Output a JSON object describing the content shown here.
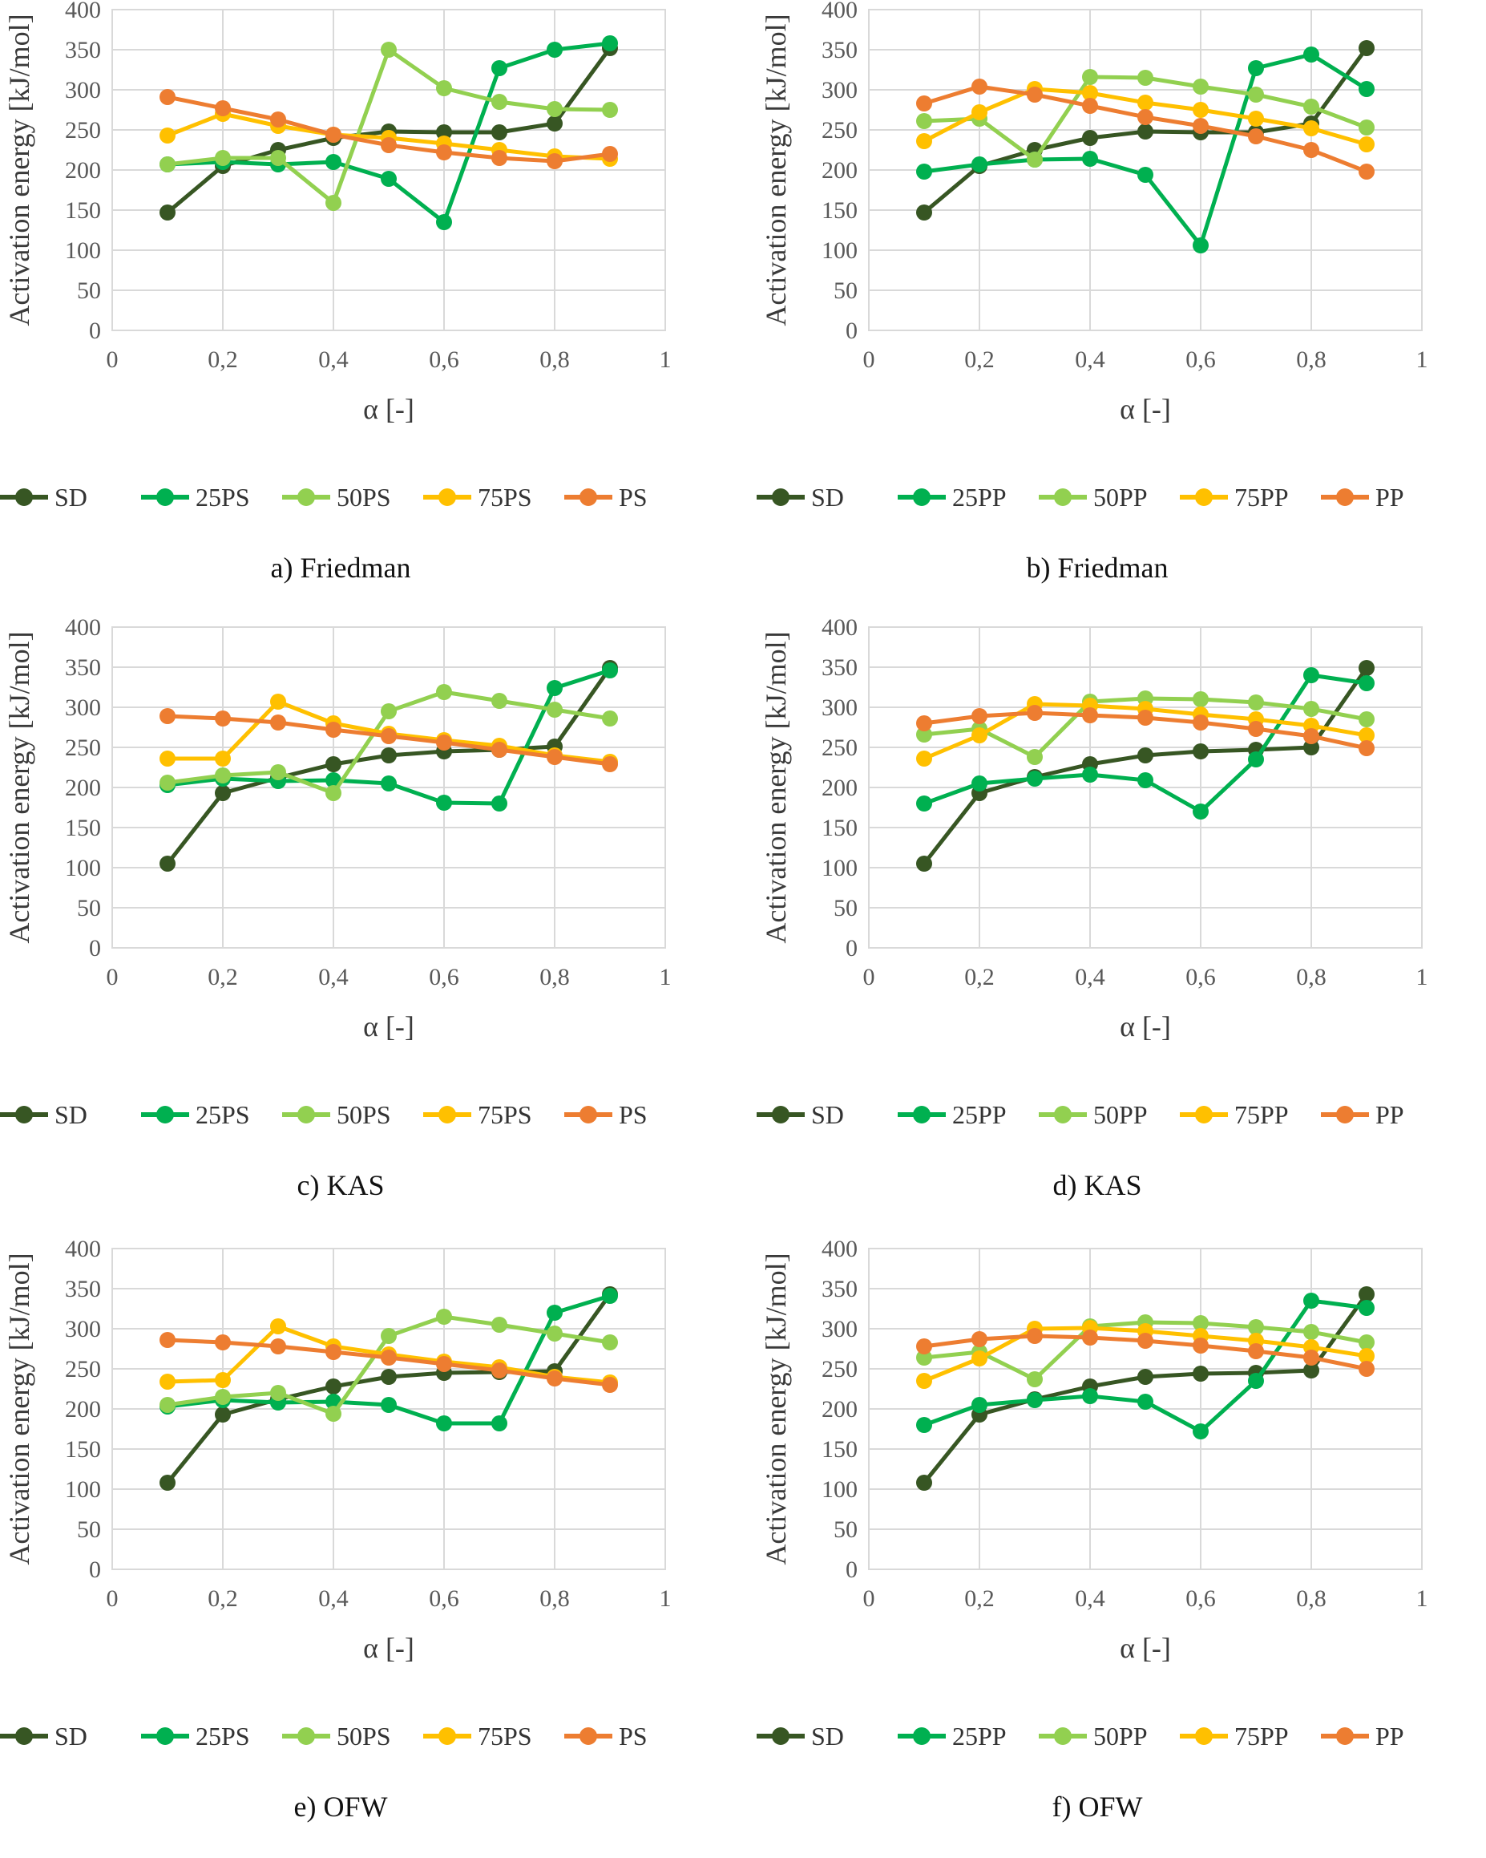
{
  "chart_data": [
    {
      "type": "line",
      "caption": "a) Friedman",
      "xlabel": "α [-]",
      "ylabel": "Activation energy [kJ/mol]",
      "xlim": [
        0,
        1
      ],
      "ylim": [
        0,
        400
      ],
      "xticks": [
        "0",
        "0,2",
        "0,4",
        "0,6",
        "0,8",
        "1"
      ],
      "yticks": [
        "0",
        "50",
        "100",
        "150",
        "200",
        "250",
        "300",
        "350",
        "400"
      ],
      "grid": true,
      "legend": "bottom",
      "x": [
        0.1,
        0.2,
        0.3,
        0.4,
        0.5,
        0.6,
        0.7,
        0.8,
        0.9
      ],
      "series": [
        {
          "name": "SD",
          "color": "#375623",
          "values": [
            147,
            205,
            225,
            240,
            248,
            247,
            247,
            258,
            352
          ]
        },
        {
          "name": "25PS",
          "color": "#00B050",
          "values": [
            207,
            210,
            207,
            210,
            189,
            135,
            327,
            350,
            358
          ]
        },
        {
          "name": "50PS",
          "color": "#92D050",
          "values": [
            207,
            215,
            215,
            159,
            350,
            302,
            285,
            276,
            275
          ]
        },
        {
          "name": "75PS",
          "color": "#FFC000",
          "values": [
            243,
            270,
            255,
            244,
            240,
            233,
            225,
            217,
            214
          ]
        },
        {
          "name": "PS",
          "color": "#ED7D31",
          "values": [
            291,
            277,
            263,
            244,
            231,
            222,
            215,
            211,
            220
          ]
        }
      ]
    },
    {
      "type": "line",
      "caption": "b) Friedman",
      "xlabel": "α [-]",
      "ylabel": "Activation energy [kJ/mol]",
      "xlim": [
        0,
        1
      ],
      "ylim": [
        0,
        400
      ],
      "xticks": [
        "0",
        "0,2",
        "0,4",
        "0,6",
        "0,8",
        "1"
      ],
      "yticks": [
        "0",
        "50",
        "100",
        "150",
        "200",
        "250",
        "300",
        "350",
        "400"
      ],
      "grid": true,
      "legend": "bottom",
      "x": [
        0.1,
        0.2,
        0.3,
        0.4,
        0.5,
        0.6,
        0.7,
        0.8,
        0.9
      ],
      "series": [
        {
          "name": "SD",
          "color": "#375623",
          "values": [
            147,
            205,
            225,
            240,
            248,
            247,
            247,
            258,
            352
          ]
        },
        {
          "name": "25PP",
          "color": "#00B050",
          "values": [
            198,
            207,
            213,
            214,
            194,
            106,
            327,
            344,
            301
          ]
        },
        {
          "name": "50PP",
          "color": "#92D050",
          "values": [
            261,
            264,
            213,
            316,
            315,
            304,
            294,
            279,
            253
          ]
        },
        {
          "name": "75PP",
          "color": "#FFC000",
          "values": [
            236,
            272,
            301,
            296,
            284,
            275,
            264,
            252,
            232
          ]
        },
        {
          "name": "PP",
          "color": "#ED7D31",
          "values": [
            283,
            304,
            294,
            280,
            266,
            255,
            242,
            225,
            198
          ]
        }
      ]
    },
    {
      "type": "line",
      "caption": "c) KAS",
      "xlabel": "α [-]",
      "ylabel": "Activation energy [kJ/mol]",
      "xlim": [
        0,
        1
      ],
      "ylim": [
        0,
        400
      ],
      "xticks": [
        "0",
        "0,2",
        "0,4",
        "0,6",
        "0,8",
        "1"
      ],
      "yticks": [
        "0",
        "50",
        "100",
        "150",
        "200",
        "250",
        "300",
        "350",
        "400"
      ],
      "grid": true,
      "legend": "bottom",
      "x": [
        0.1,
        0.2,
        0.3,
        0.4,
        0.5,
        0.6,
        0.7,
        0.8,
        0.9
      ],
      "series": [
        {
          "name": "SD",
          "color": "#375623",
          "values": [
            105,
            193,
            212,
            229,
            240,
            245,
            247,
            251,
            349
          ]
        },
        {
          "name": "25PS",
          "color": "#00B050",
          "values": [
            203,
            211,
            208,
            209,
            205,
            181,
            180,
            324,
            346
          ]
        },
        {
          "name": "50PS",
          "color": "#92D050",
          "values": [
            206,
            215,
            219,
            193,
            295,
            319,
            308,
            297,
            286
          ]
        },
        {
          "name": "75PS",
          "color": "#FFC000",
          "values": [
            236,
            236,
            307,
            280,
            267,
            259,
            252,
            240,
            232
          ]
        },
        {
          "name": "PS",
          "color": "#ED7D31",
          "values": [
            289,
            286,
            281,
            272,
            264,
            256,
            247,
            238,
            229
          ]
        }
      ]
    },
    {
      "type": "line",
      "caption": "d) KAS",
      "xlabel": "α [-]",
      "ylabel": "Activation energy [kJ/mol]",
      "xlim": [
        0,
        1
      ],
      "ylim": [
        0,
        400
      ],
      "xticks": [
        "0",
        "0,2",
        "0,4",
        "0,6",
        "0,8",
        "1"
      ],
      "yticks": [
        "0",
        "50",
        "100",
        "150",
        "200",
        "250",
        "300",
        "350",
        "400"
      ],
      "grid": true,
      "legend": "bottom",
      "x": [
        0.1,
        0.2,
        0.3,
        0.4,
        0.5,
        0.6,
        0.7,
        0.8,
        0.9
      ],
      "series": [
        {
          "name": "SD",
          "color": "#375623",
          "values": [
            105,
            193,
            213,
            229,
            240,
            245,
            247,
            250,
            349
          ]
        },
        {
          "name": "25PP",
          "color": "#00B050",
          "values": [
            180,
            205,
            211,
            216,
            209,
            170,
            235,
            340,
            330
          ]
        },
        {
          "name": "50PP",
          "color": "#92D050",
          "values": [
            266,
            273,
            238,
            307,
            311,
            310,
            306,
            298,
            285
          ]
        },
        {
          "name": "75PP",
          "color": "#FFC000",
          "values": [
            236,
            265,
            304,
            302,
            298,
            291,
            285,
            277,
            265
          ]
        },
        {
          "name": "PP",
          "color": "#ED7D31",
          "values": [
            280,
            289,
            293,
            290,
            287,
            281,
            273,
            264,
            249
          ]
        }
      ]
    },
    {
      "type": "line",
      "caption": "e) OFW",
      "xlabel": "α [-]",
      "ylabel": "Activation energy [kJ/mol]",
      "xlim": [
        0,
        1
      ],
      "ylim": [
        0,
        400
      ],
      "xticks": [
        "0",
        "0,2",
        "0,4",
        "0,6",
        "0,8",
        "1"
      ],
      "yticks": [
        "0",
        "50",
        "100",
        "150",
        "200",
        "250",
        "300",
        "350",
        "400"
      ],
      "grid": true,
      "legend": "bottom",
      "x": [
        0.1,
        0.2,
        0.3,
        0.4,
        0.5,
        0.6,
        0.7,
        0.8,
        0.9
      ],
      "series": [
        {
          "name": "SD",
          "color": "#375623",
          "values": [
            108,
            193,
            212,
            228,
            240,
            245,
            246,
            247,
            343
          ]
        },
        {
          "name": "25PS",
          "color": "#00B050",
          "values": [
            203,
            211,
            208,
            209,
            205,
            182,
            182,
            320,
            341
          ]
        },
        {
          "name": "50PS",
          "color": "#92D050",
          "values": [
            205,
            215,
            220,
            194,
            291,
            315,
            305,
            294,
            283
          ]
        },
        {
          "name": "75PS",
          "color": "#FFC000",
          "values": [
            234,
            236,
            303,
            278,
            268,
            259,
            252,
            240,
            233
          ]
        },
        {
          "name": "PS",
          "color": "#ED7D31",
          "values": [
            286,
            283,
            278,
            271,
            264,
            256,
            248,
            238,
            230
          ]
        }
      ]
    },
    {
      "type": "line",
      "caption": "f) OFW",
      "xlabel": "α [-]",
      "ylabel": "Activation energy [kJ/mol]",
      "xlim": [
        0,
        1
      ],
      "ylim": [
        0,
        400
      ],
      "xticks": [
        "0",
        "0,2",
        "0,4",
        "0,6",
        "0,8",
        "1"
      ],
      "yticks": [
        "0",
        "50",
        "100",
        "150",
        "200",
        "250",
        "300",
        "350",
        "400"
      ],
      "grid": true,
      "legend": "bottom",
      "x": [
        0.1,
        0.2,
        0.3,
        0.4,
        0.5,
        0.6,
        0.7,
        0.8,
        0.9
      ],
      "series": [
        {
          "name": "SD",
          "color": "#375623",
          "values": [
            108,
            193,
            212,
            228,
            240,
            244,
            245,
            248,
            343
          ]
        },
        {
          "name": "25PP",
          "color": "#00B050",
          "values": [
            180,
            205,
            211,
            216,
            209,
            172,
            235,
            335,
            326
          ]
        },
        {
          "name": "50PP",
          "color": "#92D050",
          "values": [
            264,
            271,
            237,
            303,
            308,
            307,
            302,
            296,
            283
          ]
        },
        {
          "name": "75PP",
          "color": "#FFC000",
          "values": [
            235,
            263,
            300,
            301,
            297,
            291,
            285,
            277,
            266
          ]
        },
        {
          "name": "PP",
          "color": "#ED7D31",
          "values": [
            278,
            287,
            291,
            289,
            285,
            279,
            272,
            264,
            250
          ]
        }
      ]
    }
  ]
}
